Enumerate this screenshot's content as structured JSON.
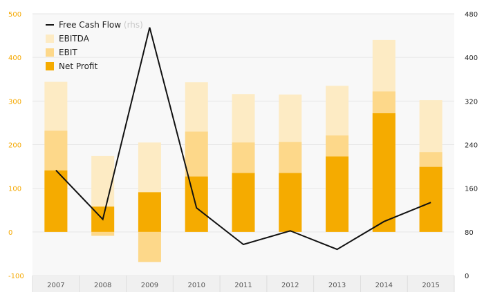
{
  "chart_data": {
    "type": "bar",
    "categories": [
      "2007",
      "2008",
      "2009",
      "2010",
      "2011",
      "2012",
      "2013",
      "2014",
      "2015"
    ],
    "series": [
      {
        "name": "EBITDA",
        "kind": "bar",
        "axis": "left",
        "values": [
          344,
          174,
          205,
          343,
          316,
          315,
          335,
          440,
          302
        ]
      },
      {
        "name": "EBIT",
        "kind": "bar",
        "axis": "left",
        "values": [
          232,
          -9,
          -69,
          230,
          205,
          206,
          221,
          322,
          183
        ]
      },
      {
        "name": "Net Profit",
        "kind": "bar",
        "axis": "left",
        "values": [
          141,
          58,
          91,
          127,
          135,
          135,
          173,
          272,
          149
        ]
      },
      {
        "name": "Free Cash Flow",
        "kind": "line",
        "axis": "right",
        "values": [
          193,
          103,
          455,
          124,
          57,
          82,
          48,
          99,
          134
        ]
      }
    ],
    "left_axis": {
      "ylim": [
        -100,
        500
      ],
      "ticks": [
        -100,
        0,
        100,
        200,
        300,
        400,
        500
      ],
      "tick_color": "#f5a800"
    },
    "right_axis": {
      "ylim": [
        0,
        480
      ],
      "ticks": [
        0,
        80,
        160,
        240,
        320,
        400,
        480
      ],
      "tick_color": "#222222"
    },
    "legend": {
      "position": "top-left",
      "items": [
        {
          "label": "Free Cash Flow",
          "suffix": "(rhs)",
          "symbol": "line",
          "color": "#111111"
        },
        {
          "label": "EBITDA",
          "symbol": "square",
          "color": "#fdebc4"
        },
        {
          "label": "EBIT",
          "symbol": "square",
          "color": "#fdd88a"
        },
        {
          "label": "Net Profit",
          "symbol": "square",
          "color": "#f5ab00"
        }
      ]
    },
    "colors": {
      "EBITDA": "#fdebc4",
      "EBIT": "#fdd88a",
      "Net Profit": "#f5ab00",
      "Free Cash Flow": "#111111",
      "plot_background": "#f8f8f8",
      "gridline": "#e6e6e6",
      "category_band": "#f0f0f0"
    },
    "grid": true
  }
}
